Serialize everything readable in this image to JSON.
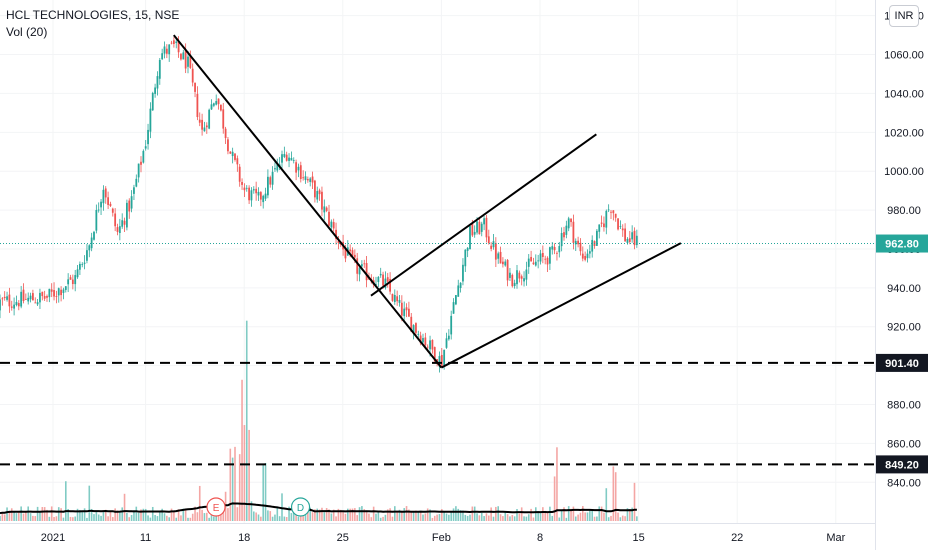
{
  "symbol_title": "HCL TECHNOLOGIES, 15, NSE",
  "indicator_label": "Vol (20)",
  "currency": "INR",
  "colors": {
    "up": "#26a69a",
    "down": "#ef5350",
    "up_vol": "#80cbc4",
    "down_vol": "#f4a6a4",
    "last_price_tag": "#26a69a",
    "level_tag": "#131722",
    "trendline": "#000000"
  },
  "chart_data": {
    "type": "candlestick",
    "title": "HCL TECHNOLOGIES, 15, NSE",
    "interval": "15",
    "exchange": "NSE",
    "y_axis": {
      "range": [
        817,
        1086
      ],
      "ticks": [
        "840.00",
        "860.00",
        "880.00",
        "900.00",
        "920.00",
        "940.00",
        "960.00",
        "980.00",
        "1000.00",
        "1020.00",
        "1040.00",
        "1060.00",
        "1080.00"
      ],
      "side": "right"
    },
    "x_axis": {
      "ticks": [
        "2021",
        "11",
        "18",
        "25",
        "Feb",
        "8",
        "15",
        "22",
        "Mar"
      ]
    },
    "price_path": [
      {
        "date": "2021-01-04",
        "price": 935
      },
      {
        "date": "2021-01-06",
        "price": 945
      },
      {
        "date": "2021-01-07",
        "price": 962
      },
      {
        "date": "2021-01-08",
        "price": 993
      },
      {
        "date": "2021-01-09",
        "price": 968
      },
      {
        "date": "2021-01-10",
        "price": 985
      },
      {
        "date": "2021-01-11",
        "price": 1015
      },
      {
        "date": "2021-01-12",
        "price": 1060
      },
      {
        "date": "2021-01-13",
        "price": 1064
      },
      {
        "date": "2021-01-14",
        "price": 1055
      },
      {
        "date": "2021-01-15",
        "price": 1020
      },
      {
        "date": "2021-01-16",
        "price": 1040
      },
      {
        "date": "2021-01-17",
        "price": 1010
      },
      {
        "date": "2021-01-18",
        "price": 990
      },
      {
        "date": "2021-01-19",
        "price": 985
      },
      {
        "date": "2021-01-21",
        "price": 1010
      },
      {
        "date": "2021-01-22",
        "price": 1000
      },
      {
        "date": "2021-01-23",
        "price": 990
      },
      {
        "date": "2021-01-25",
        "price": 960
      },
      {
        "date": "2021-01-26",
        "price": 950
      },
      {
        "date": "2021-01-28",
        "price": 942
      },
      {
        "date": "2021-01-29",
        "price": 930
      },
      {
        "date": "2021-02-01",
        "price": 902
      },
      {
        "date": "2021-02-02",
        "price": 935
      },
      {
        "date": "2021-02-03",
        "price": 968
      },
      {
        "date": "2021-02-04",
        "price": 972
      },
      {
        "date": "2021-02-05",
        "price": 955
      },
      {
        "date": "2021-02-06",
        "price": 945
      },
      {
        "date": "2021-02-07",
        "price": 950
      },
      {
        "date": "2021-02-09",
        "price": 958
      },
      {
        "date": "2021-02-10",
        "price": 975
      },
      {
        "date": "2021-02-11",
        "price": 955
      },
      {
        "date": "2021-02-12",
        "price": 965
      },
      {
        "date": "2021-02-13",
        "price": 983
      },
      {
        "date": "2021-02-14",
        "price": 966
      },
      {
        "date": "2021-02-15",
        "price": 963
      }
    ],
    "last_price": "962.80",
    "horizontal_levels": [
      {
        "value": 901.4,
        "label": "901.40",
        "style": "dashed"
      },
      {
        "value": 849.2,
        "label": "849.20",
        "style": "dashed"
      }
    ],
    "trendlines": [
      {
        "from": {
          "date": "2021-01-13",
          "price": 1070
        },
        "to": {
          "date": "2021-02-01",
          "price": 899
        }
      },
      {
        "from": {
          "date": "2021-02-01",
          "price": 899
        },
        "to": {
          "date": "2021-02-18",
          "price": 963
        }
      },
      {
        "from": {
          "date": "2021-01-27",
          "price": 936
        },
        "to": {
          "date": "2021-02-12",
          "price": 1019
        }
      }
    ],
    "event_markers": [
      {
        "letter": "E",
        "date": "2021-01-16"
      },
      {
        "letter": "D",
        "date": "2021-01-22"
      }
    ],
    "volume": {
      "label": "Vol (20)",
      "shown": true
    }
  }
}
